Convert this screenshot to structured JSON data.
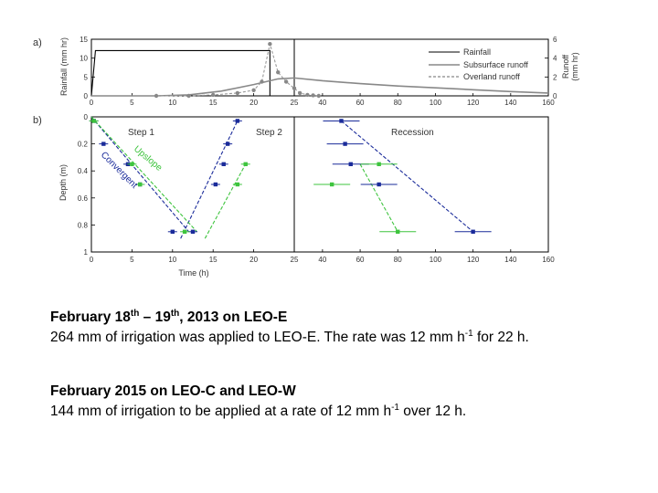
{
  "chart_data": [
    {
      "type": "line",
      "panel_label": "a)",
      "ylabel": "Rainfall (mm hr)",
      "y2label_line1": "Runoff",
      "y2label_line2": "(mm hr)",
      "x_ticks": [
        0,
        5,
        10,
        15,
        20,
        25,
        40,
        60,
        80,
        100,
        120,
        140,
        160
      ],
      "y_ticks": [
        0,
        5,
        10,
        15
      ],
      "y2_ticks": [
        0,
        2,
        4,
        6
      ],
      "legend": [
        "Rainfall",
        "Subsurface runoff",
        "Overland runoff"
      ],
      "series": [
        {
          "name": "Rainfall",
          "axis": "left",
          "x": [
            0,
            0.5,
            22,
            22
          ],
          "y": [
            0,
            12,
            12,
            0
          ]
        },
        {
          "name": "Subsurface runoff",
          "axis": "right",
          "x": [
            0,
            8,
            12,
            16,
            20,
            23,
            25,
            40,
            60,
            80,
            100,
            120,
            140,
            160
          ],
          "y": [
            0,
            0,
            0.1,
            0.5,
            1.2,
            1.8,
            1.9,
            1.6,
            1.3,
            1.05,
            0.85,
            0.65,
            0.45,
            0.3
          ]
        },
        {
          "name": "Overland runoff",
          "axis": "right",
          "x": [
            8,
            12,
            15,
            18,
            20,
            21,
            22,
            23,
            24,
            25,
            28,
            32,
            35,
            38
          ],
          "y": [
            0,
            0,
            0.1,
            0.3,
            0.6,
            1.5,
            5.5,
            2.5,
            1.5,
            0.8,
            0.3,
            0.1,
            0.05,
            0
          ]
        }
      ]
    },
    {
      "type": "scatter",
      "panel_label": "b)",
      "xlabel": "Time (h)",
      "ylabel": "Depth (m)",
      "x_ticks": [
        0,
        5,
        10,
        15,
        20,
        25,
        40,
        60,
        80,
        100,
        120,
        140,
        160
      ],
      "y_ticks": [
        0,
        0.2,
        0.4,
        0.6,
        0.8,
        1
      ],
      "annotations": [
        "Step 1",
        "Step 2",
        "Recession",
        "Upslope",
        "Convergent"
      ],
      "series": [
        {
          "name": "Convergent",
          "color": "#1a2b9a",
          "points": [
            [
              0.3,
              0.03
            ],
            [
              1.5,
              0.2
            ],
            [
              4.5,
              0.35
            ],
            [
              6,
              0.5
            ],
            [
              10,
              0.85
            ],
            [
              12.5,
              0.85
            ],
            [
              15.3,
              0.5
            ],
            [
              16.3,
              0.35
            ],
            [
              16.8,
              0.2
            ],
            [
              18,
              0.03
            ],
            [
              50,
              0.03
            ],
            [
              52,
              0.2
            ],
            [
              55,
              0.35
            ],
            [
              70,
              0.5
            ],
            [
              120,
              0.85
            ]
          ]
        },
        {
          "name": "Upslope",
          "color": "#3ec43e",
          "points": [
            [
              0.3,
              0.03
            ],
            [
              5,
              0.35
            ],
            [
              6,
              0.5
            ],
            [
              11.5,
              0.85
            ],
            [
              18,
              0.5
            ],
            [
              19,
              0.35
            ],
            [
              45,
              0.5
            ],
            [
              70,
              0.35
            ],
            [
              80,
              0.85
            ]
          ]
        }
      ],
      "fit_lines": [
        {
          "group": "Convergent",
          "x": [
            0,
            12
          ],
          "y": [
            0,
            0.85
          ]
        },
        {
          "group": "Convergent",
          "x": [
            11,
            18
          ],
          "y": [
            0.9,
            0.03
          ]
        },
        {
          "group": "Upslope",
          "x": [
            0,
            13
          ],
          "y": [
            0,
            0.85
          ]
        },
        {
          "group": "Upslope",
          "x": [
            14,
            19
          ],
          "y": [
            0.9,
            0.35
          ]
        },
        {
          "group": "Convergent",
          "x": [
            50,
            120
          ],
          "y": [
            0.03,
            0.85
          ]
        },
        {
          "group": "Upslope",
          "x": [
            60,
            80
          ],
          "y": [
            0.35,
            0.85
          ]
        }
      ]
    }
  ],
  "caption": {
    "block1": {
      "title_pre": "February 18",
      "sup1": "th",
      "title_mid": " – 19",
      "sup2": "th",
      "title_post": ", 2013 on LEO-E",
      "line_pre": "264 mm of irrigation was applied to LEO-E.  The rate was 12 mm h",
      "sup": "-1",
      "line_post": " for 22 h."
    },
    "block2": {
      "title": "February 2015 on LEO-C and LEO-W",
      "line_pre": "144 mm of irrigation to be applied at a rate of 12 mm h",
      "sup": "-1",
      "line_post": " over 12 h."
    }
  }
}
